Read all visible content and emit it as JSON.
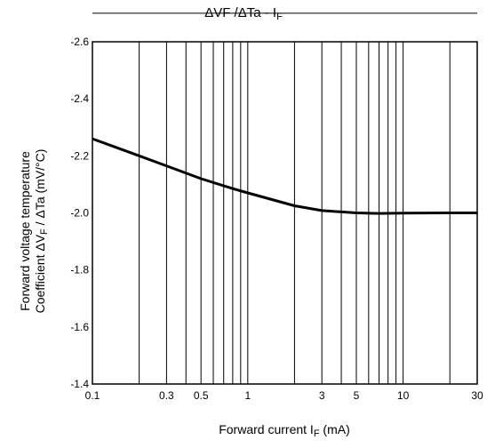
{
  "chart_data": {
    "type": "line",
    "title": {
      "base": "ΔVF /ΔTa - I",
      "sub": "F"
    },
    "xlabel": {
      "base": "Forward current   I",
      "sub": "F",
      "unit": "   (mA)"
    },
    "ylabel": {
      "line1": "Forward voltage temperature",
      "line2_pre": "Coefficient ΔV",
      "line2_sub": "F",
      "line2_post": " / ΔTa   (mV/°C)"
    },
    "x_scale": "log",
    "xlim": [
      0.1,
      30
    ],
    "ylim": [
      -1.4,
      -2.6
    ],
    "x_ticks": [
      0.1,
      0.3,
      0.5,
      1,
      3,
      5,
      10,
      30
    ],
    "x_tick_labels": [
      "0.1",
      "0.3",
      "0.5",
      "1",
      "3",
      "5",
      "10",
      "30"
    ],
    "y_ticks": [
      -2.6,
      -2.4,
      -2.2,
      -2.0,
      -1.8,
      -1.6,
      -1.4
    ],
    "y_tick_labels": [
      "-2.6",
      "-2.4",
      "-2.2",
      "-2.0",
      "-1.8",
      "-1.6",
      "-1.4"
    ],
    "grid": true,
    "series": [
      {
        "x": [
          0.1,
          0.2,
          0.3,
          0.5,
          0.8,
          1,
          2,
          3,
          5,
          7,
          10,
          20,
          30
        ],
        "y": [
          -2.26,
          -2.2,
          -2.165,
          -2.12,
          -2.085,
          -2.07,
          -2.025,
          -2.008,
          -2.0,
          -1.998,
          -1.999,
          -2.0,
          -2.0
        ]
      }
    ]
  }
}
